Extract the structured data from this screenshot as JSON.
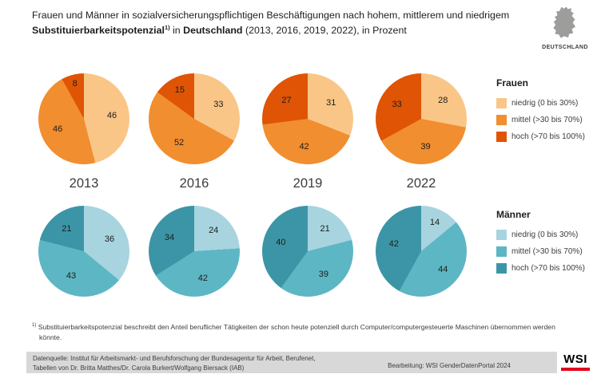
{
  "title": {
    "seg1": "Frauen und Männer in sozialversicherungspflichtigen Beschäftigungen nach hohem, mittlerem und niedrigem ",
    "seg2_bold": "Substituierbarkeitspotenzial",
    "sup": "1)",
    "seg3": " in ",
    "seg4_bold": "Deutschland",
    "seg5": " (2013, 2016, 2019, 2022), in Prozent"
  },
  "country_label": "DEUTSCHLAND",
  "chart_data": {
    "type": "pie",
    "title": "Frauen und Männer in sozialversicherungspflichtigen Beschäftigungen nach hohem, mittlerem und niedrigem Substituierbarkeitspotenzial in Deutschland (2013, 2016, 2019, 2022), in Prozent",
    "unit": "Prozent",
    "years": [
      "2013",
      "2016",
      "2019",
      "2022"
    ],
    "categories": [
      "niedrig (0 bis 30%)",
      "mittel (>30 bis 70%)",
      "hoch (>70 bis 100%)"
    ],
    "groups": [
      {
        "name": "Frauen",
        "colors": [
          "#F9C687",
          "#F18E2F",
          "#E05405"
        ],
        "legend": [
          "niedrig (0 bis 30%)",
          "mittel (>30 bis 70%)",
          "hoch (>70 bis 100%)"
        ],
        "series": [
          {
            "year": "2013",
            "values": [
              46,
              46,
              8
            ]
          },
          {
            "year": "2016",
            "values": [
              33,
              52,
              15
            ]
          },
          {
            "year": "2019",
            "values": [
              31,
              42,
              27
            ]
          },
          {
            "year": "2022",
            "values": [
              28,
              39,
              33
            ]
          }
        ]
      },
      {
        "name": "Männer",
        "colors": [
          "#A7D4DF",
          "#5DB6C4",
          "#3C95A6"
        ],
        "legend": [
          "niedrig (0 bis 30%)",
          "mittel (>30 bis 70%)",
          "hoch (>70 bis 100%)"
        ],
        "series": [
          {
            "year": "2013",
            "values": [
              36,
              43,
              21
            ]
          },
          {
            "year": "2016",
            "values": [
              24,
              42,
              34
            ]
          },
          {
            "year": "2019",
            "values": [
              21,
              39,
              40
            ]
          },
          {
            "year": "2022",
            "values": [
              14,
              44,
              42
            ]
          }
        ]
      }
    ]
  },
  "footnote": {
    "sup": "1)",
    "text": "Substituierbarkeitspotenzial beschreibt den Anteil beruflicher Tätigkeiten der schon heute potenziell durch Computer/computergesteuerte Maschinen übernommen werden könnte."
  },
  "source": {
    "line1": "Datenquelle: Institut für Arbeitsmarkt- und Berufsforschung der Bundesagentur für Arbeit, Berufenet,",
    "line2": "Tabellen von Dr. Britta Matthes/Dr. Carola Burkert/Wolfgang Biersack (IAB)",
    "credit": "Bearbeitung: WSI GenderDatenPortal 2024"
  },
  "logo": {
    "text": "WSI"
  }
}
